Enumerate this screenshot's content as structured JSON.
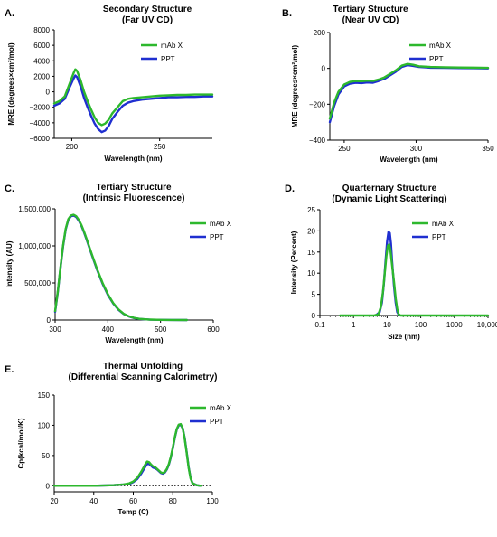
{
  "colors": {
    "mabx": "#2db82d",
    "ppt": "#1f2fd0",
    "axis": "#000000"
  },
  "chart_data": [
    {
      "type": "line",
      "panel": "A.",
      "title": [
        "Secondary Structure",
        "(Far UV CD)"
      ],
      "xlabel": "Wavelength (nm)",
      "ylabel": "MRE (degrees×cm²/mol)",
      "xlim": [
        190,
        280
      ],
      "ylim": [
        -6000,
        8000
      ],
      "xticks": [
        200,
        250
      ],
      "yticks": [
        -6000,
        -4000,
        -2000,
        0,
        2000,
        4000,
        6000,
        8000
      ],
      "ytick_labels": [
        "−6000",
        "−4000",
        "−2000",
        "0",
        "2000",
        "4000",
        "6000",
        "8000"
      ],
      "legend": "top-right",
      "series": [
        {
          "name": "mAb X",
          "color_key": "mabx",
          "x": [
            190,
            193,
            196,
            199,
            201,
            202,
            203,
            205,
            207,
            209,
            211,
            213,
            215,
            217,
            219,
            221,
            223,
            226,
            229,
            232,
            235,
            240,
            245,
            250,
            255,
            260,
            265,
            270,
            275,
            280
          ],
          "y": [
            -1500,
            -1200,
            -600,
            1200,
            2400,
            2900,
            2700,
            1500,
            0,
            -1200,
            -2300,
            -3300,
            -4000,
            -4300,
            -4100,
            -3600,
            -2800,
            -2000,
            -1200,
            -900,
            -800,
            -700,
            -600,
            -500,
            -450,
            -400,
            -400,
            -350,
            -350,
            -350
          ]
        },
        {
          "name": "PPT",
          "color_key": "ppt",
          "x": [
            190,
            193,
            196,
            199,
            201,
            202,
            203,
            205,
            207,
            209,
            211,
            213,
            215,
            217,
            219,
            221,
            223,
            226,
            229,
            232,
            235,
            240,
            245,
            250,
            255,
            260,
            265,
            270,
            275,
            280
          ],
          "y": [
            -1800,
            -1500,
            -900,
            700,
            1700,
            2100,
            1900,
            700,
            -800,
            -2000,
            -3100,
            -4100,
            -4800,
            -5200,
            -5000,
            -4400,
            -3500,
            -2600,
            -1800,
            -1400,
            -1200,
            -1000,
            -900,
            -800,
            -700,
            -700,
            -650,
            -650,
            -600,
            -600
          ]
        }
      ]
    },
    {
      "type": "line",
      "panel": "B.",
      "title": [
        "Tertiary Structure",
        "(Near UV  CD)"
      ],
      "xlabel": "Wavelength (nm)",
      "ylabel": "MRE (degrees×cm²/mol)",
      "xlim": [
        240,
        350
      ],
      "ylim": [
        -400,
        200
      ],
      "xticks": [
        250,
        300,
        350
      ],
      "yticks": [
        -400,
        -200,
        0,
        200
      ],
      "ytick_labels": [
        "−400",
        "−200",
        "0",
        "200"
      ],
      "legend": "top-right",
      "series": [
        {
          "name": "mAb X",
          "color_key": "mabx",
          "x": [
            240,
            243,
            246,
            250,
            254,
            258,
            262,
            266,
            270,
            274,
            278,
            282,
            286,
            290,
            294,
            298,
            302,
            306,
            310,
            320,
            330,
            340,
            350
          ],
          "y": [
            -280,
            -190,
            -130,
            -90,
            -75,
            -70,
            -72,
            -68,
            -70,
            -62,
            -50,
            -30,
            -10,
            15,
            25,
            20,
            12,
            10,
            8,
            6,
            5,
            4,
            3
          ]
        },
        {
          "name": "PPT",
          "color_key": "ppt",
          "x": [
            240,
            243,
            246,
            250,
            254,
            258,
            262,
            266,
            270,
            274,
            278,
            282,
            286,
            290,
            294,
            298,
            302,
            306,
            310,
            320,
            330,
            340,
            350
          ],
          "y": [
            -300,
            -210,
            -145,
            -100,
            -85,
            -80,
            -82,
            -78,
            -80,
            -70,
            -58,
            -38,
            -18,
            8,
            18,
            14,
            8,
            6,
            4,
            3,
            2,
            1,
            0
          ]
        }
      ]
    },
    {
      "type": "line",
      "panel": "C.",
      "title": [
        "Tertiary Structure",
        "(Intrinsic Fluorescence)"
      ],
      "xlabel": "Wavelength (nm)",
      "ylabel": "Intensity  (AU)",
      "xlim": [
        300,
        600
      ],
      "ylim": [
        0,
        1500000
      ],
      "xticks": [
        300,
        400,
        500,
        600
      ],
      "yticks": [
        0,
        500000,
        1000000,
        1500000
      ],
      "ytick_labels": [
        "0",
        "500,000",
        "1,000,000",
        "1,500,000"
      ],
      "legend": "top-right",
      "series": [
        {
          "name": "mAb X",
          "color_key": "mabx",
          "x": [
            300,
            305,
            310,
            315,
            320,
            325,
            330,
            335,
            340,
            345,
            350,
            355,
            360,
            370,
            380,
            390,
            400,
            410,
            420,
            430,
            440,
            450,
            460,
            480,
            500,
            520,
            550
          ],
          "y": [
            120000,
            380000,
            700000,
            1000000,
            1230000,
            1360000,
            1410000,
            1420000,
            1400000,
            1350000,
            1280000,
            1190000,
            1090000,
            880000,
            680000,
            500000,
            350000,
            230000,
            145000,
            85000,
            50000,
            28000,
            16000,
            6000,
            2500,
            1000,
            0
          ]
        },
        {
          "name": "PPT",
          "color_key": "ppt",
          "x": [
            300,
            305,
            310,
            315,
            320,
            325,
            330,
            335,
            340,
            345,
            350,
            355,
            360,
            370,
            380,
            390,
            400,
            410,
            420,
            430,
            440,
            450,
            460,
            480,
            500,
            520,
            550
          ],
          "y": [
            110000,
            370000,
            690000,
            990000,
            1220000,
            1350000,
            1400000,
            1410000,
            1390000,
            1340000,
            1270000,
            1180000,
            1080000,
            870000,
            670000,
            490000,
            340000,
            225000,
            140000,
            82000,
            48000,
            27000,
            15000,
            5500,
            2200,
            900,
            0
          ]
        }
      ]
    },
    {
      "type": "line",
      "panel": "D.",
      "title": [
        "Quarternary  Structure",
        "(Dynamic Light Scattering)"
      ],
      "xlabel": "Size (nm)",
      "ylabel": "Intensity (Percent)",
      "xscale": "log",
      "xlim": [
        0.1,
        10000
      ],
      "ylim": [
        0,
        25
      ],
      "xticks": [
        0.1,
        1,
        10,
        100,
        1000,
        10000
      ],
      "xtick_labels": [
        "0.1",
        "1",
        "10",
        "100",
        "1000",
        "10,000"
      ],
      "yticks": [
        0,
        5,
        10,
        15,
        20,
        25
      ],
      "legend": "top-right",
      "series": [
        {
          "name": "mAb X",
          "color_key": "mabx",
          "x": [
            0.4,
            4,
            5.5,
            6.5,
            7.5,
            8.5,
            9.5,
            10.5,
            11.5,
            12.5,
            14,
            16,
            18,
            20,
            22,
            25,
            100,
            10000
          ],
          "y": [
            0,
            0,
            0.3,
            2,
            5.5,
            10,
            14,
            16.5,
            16.8,
            15.5,
            12,
            8,
            4,
            1.5,
            0.3,
            0,
            0,
            0
          ]
        },
        {
          "name": "PPT",
          "color_key": "ppt",
          "x": [
            4.5,
            6,
            7,
            8,
            9,
            10,
            11,
            12,
            13,
            14,
            16,
            18,
            20,
            23
          ],
          "y": [
            0,
            0.8,
            3,
            7.5,
            13,
            17.5,
            19.8,
            19.5,
            17,
            13,
            7,
            3,
            0.8,
            0
          ]
        }
      ]
    },
    {
      "type": "line",
      "panel": "E.",
      "title": [
        "Thermal Unfolding",
        "(Differential Scanning Calorimetry)"
      ],
      "xlabel": "Temp (C)",
      "ylabel": "Cp(kcal/mol/K)",
      "xlim": [
        20,
        100
      ],
      "ylim": [
        -10,
        150
      ],
      "xticks": [
        20,
        40,
        60,
        80,
        100
      ],
      "yticks": [
        0,
        50,
        100,
        150
      ],
      "baseline": 0,
      "legend": "top-right",
      "series": [
        {
          "name": "mAb X",
          "color_key": "mabx",
          "x": [
            20,
            30,
            40,
            50,
            55,
            58,
            60,
            62,
            64,
            66,
            67,
            68,
            69,
            70,
            71,
            72,
            73,
            74,
            75,
            76,
            77,
            78,
            79,
            80,
            81,
            82,
            83,
            84,
            85,
            86,
            87,
            88,
            89,
            90,
            92,
            94
          ],
          "y": [
            0,
            0,
            0,
            1,
            2,
            4,
            7,
            13,
            23,
            35,
            40,
            39,
            35,
            32,
            31,
            28,
            25,
            22,
            21,
            23,
            28,
            36,
            48,
            63,
            80,
            94,
            101,
            102,
            95,
            78,
            55,
            30,
            12,
            4,
            1,
            0
          ]
        },
        {
          "name": "PPT",
          "color_key": "ppt",
          "x": [
            20,
            30,
            40,
            50,
            55,
            58,
            60,
            62,
            64,
            66,
            67,
            68,
            69,
            70,
            71,
            72,
            73,
            74,
            75,
            76,
            77,
            78,
            79,
            80,
            81,
            82,
            83,
            84,
            85,
            86,
            87,
            88,
            89,
            90,
            92,
            94
          ],
          "y": [
            0,
            0,
            0,
            1,
            2,
            3,
            6,
            11,
            20,
            31,
            36,
            36,
            33,
            30,
            29,
            27,
            24,
            21,
            20,
            22,
            27,
            35,
            47,
            62,
            79,
            93,
            100,
            101,
            95,
            79,
            56,
            31,
            13,
            4,
            1,
            0
          ]
        }
      ]
    }
  ]
}
